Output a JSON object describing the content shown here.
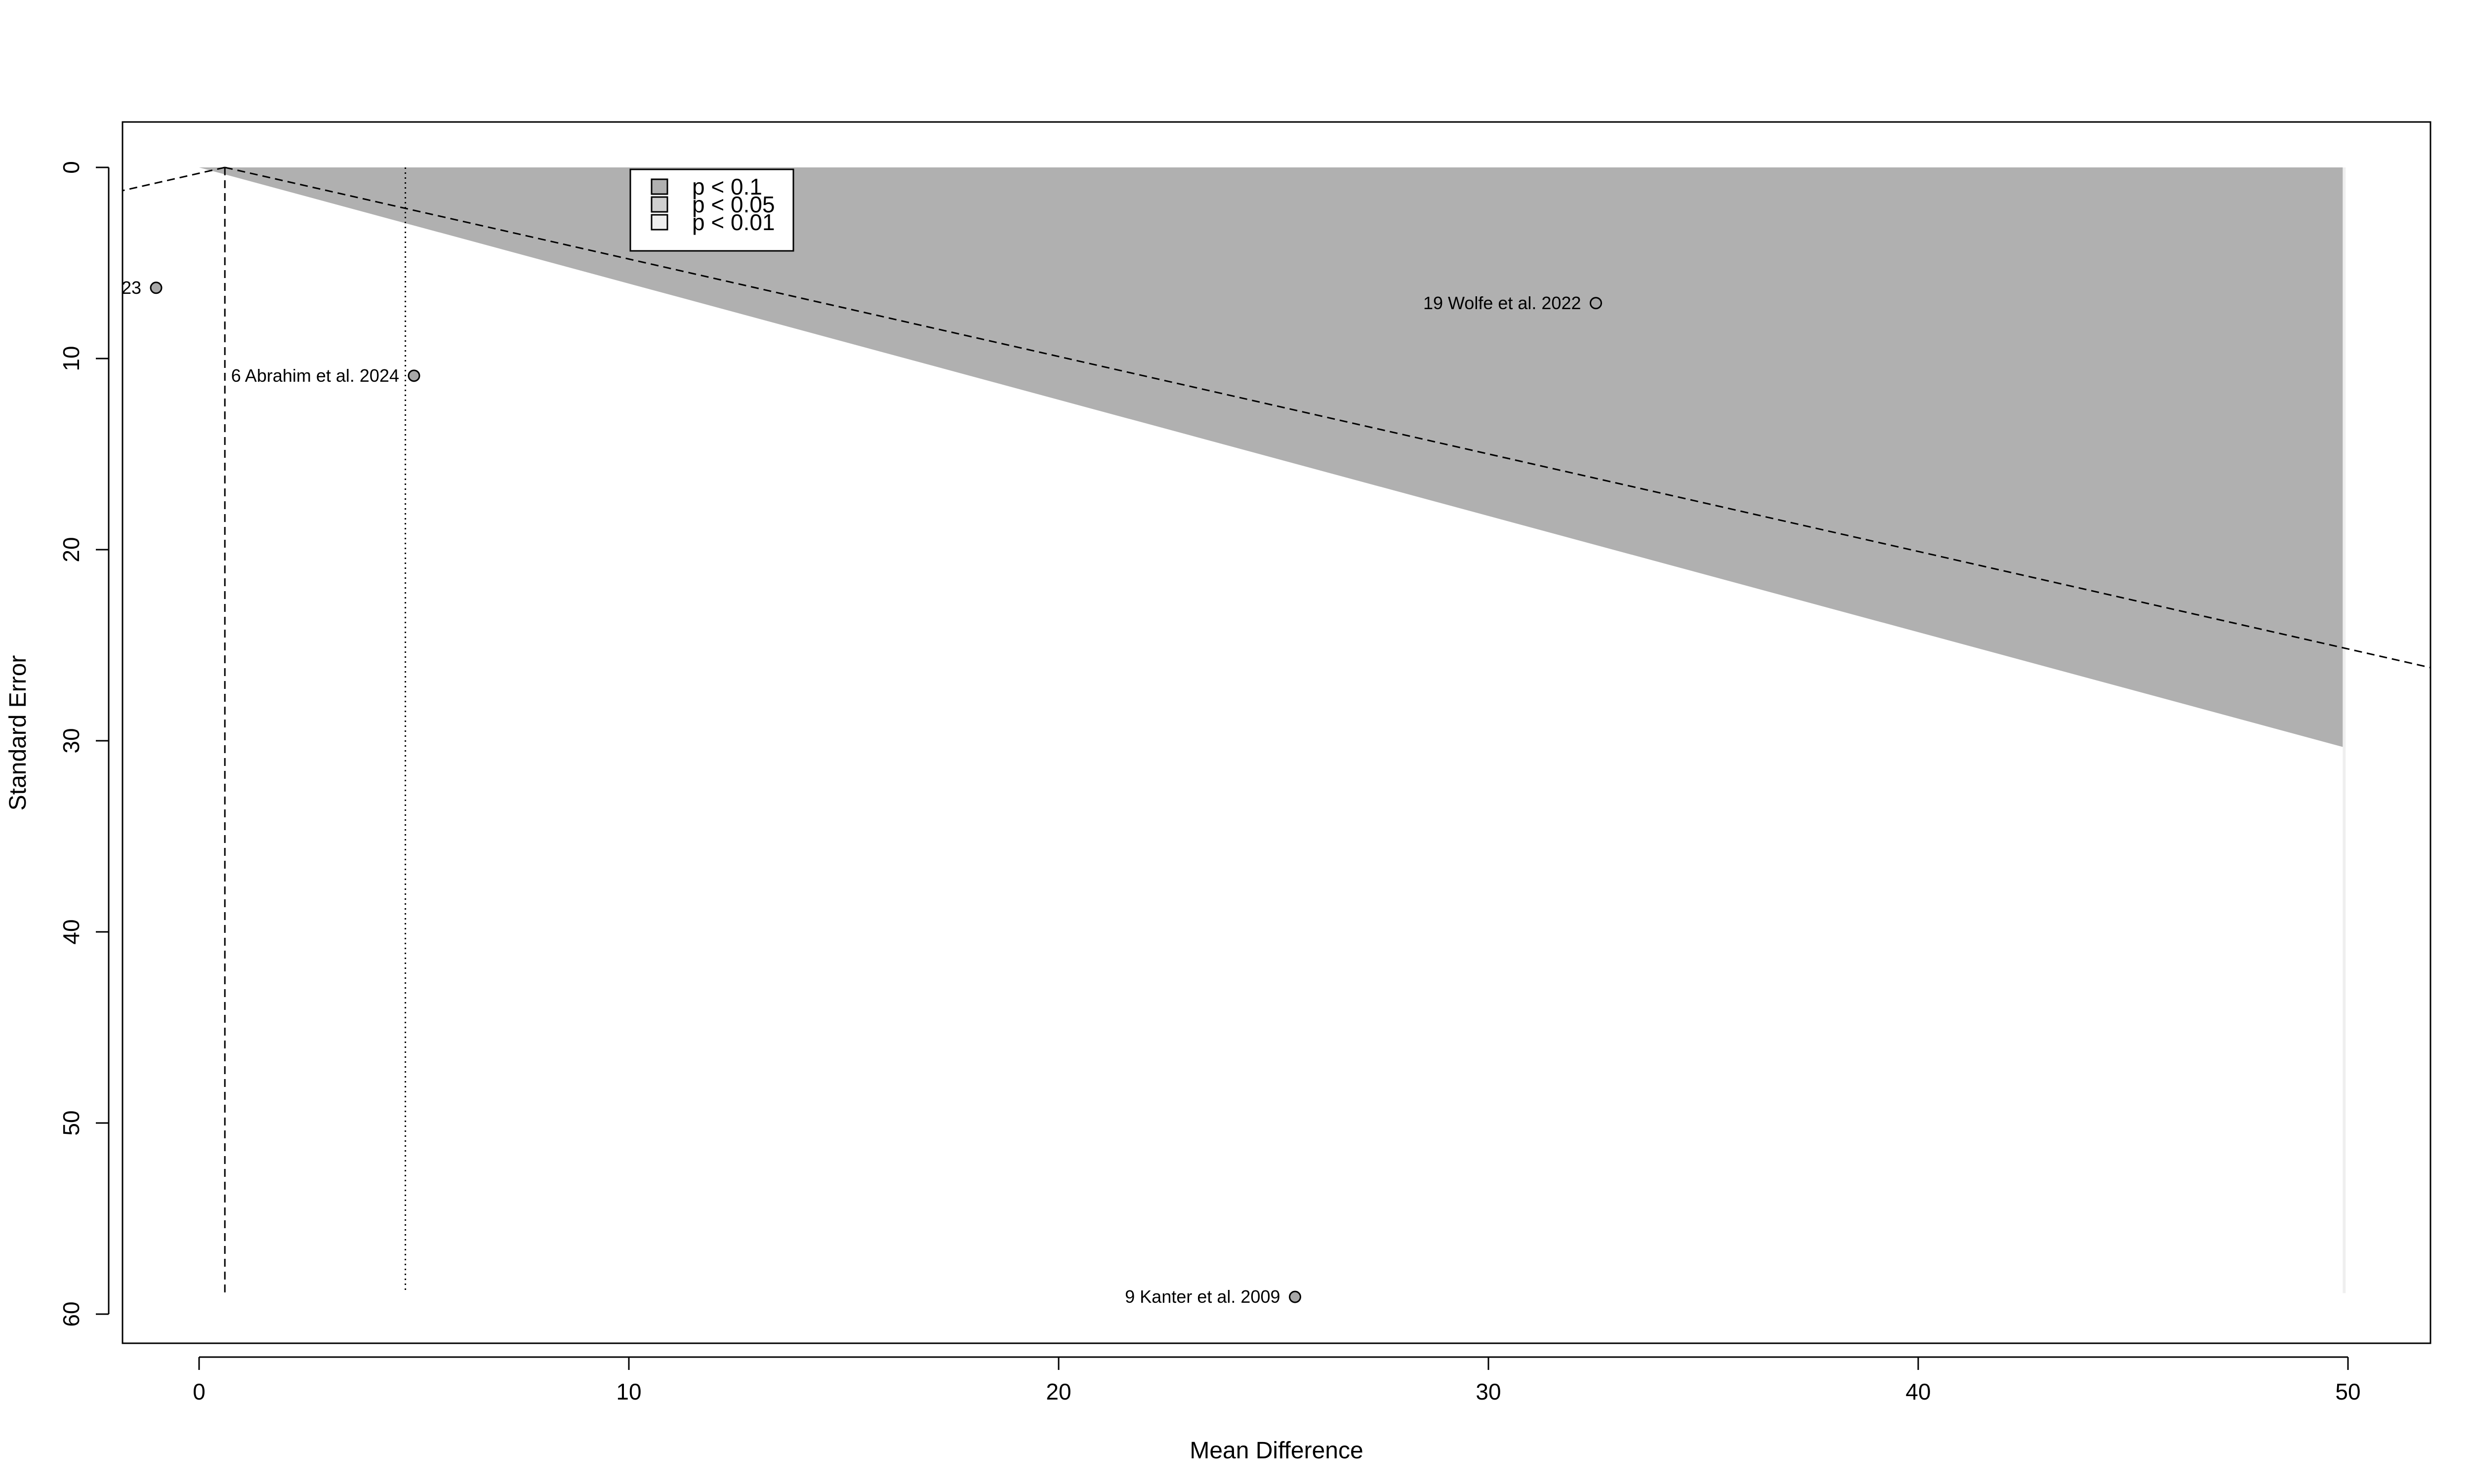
{
  "chart_data": {
    "type": "scatter",
    "subtype": "contour-enhanced funnel plot",
    "xlabel": "Mean Difference",
    "ylabel": "Standard Error",
    "xlim": [
      -1.8,
      52
    ],
    "ylim": [
      0,
      61.5
    ],
    "y_reversed": true,
    "x_ticks": [
      0,
      10,
      20,
      30,
      40,
      50
    ],
    "y_ticks": [
      0,
      10,
      20,
      30,
      40,
      50,
      60
    ],
    "grid": false,
    "legend_position": "top-left",
    "legend": [
      {
        "label": "p < 0.1",
        "color": "#b0b0b0"
      },
      {
        "label": "p < 0.05",
        "color": "#d0d0d0"
      },
      {
        "label": "p < 0.01",
        "color": "#efefef"
      }
    ],
    "contours": {
      "x_max": 49.9,
      "se_max": 58.9,
      "bands": [
        {
          "p": "p < 0.1",
          "z": 1.645,
          "color": "#b0b0b0"
        },
        {
          "p": "p < 0.05",
          "z": 1.96,
          "color": "#d0d0d0"
        },
        {
          "p": "p < 0.01",
          "z": 2.576,
          "color": "#efefef"
        }
      ]
    },
    "funnel_center": 0.6,
    "funnel_se_max": 58.9,
    "funnel_outer_slope": -0.51,
    "reference_line": 4.8,
    "points": [
      {
        "label": "23",
        "x": -1.0,
        "y": 6.3
      },
      {
        "label": "6 Abrahim et al. 2024",
        "x": 5.0,
        "y": 10.9
      },
      {
        "label": "19 Wolfe et al. 2022",
        "x": 32.5,
        "y": 7.1
      },
      {
        "label": "9 Kanter et al. 2009",
        "x": 25.5,
        "y": 59.1
      }
    ]
  }
}
